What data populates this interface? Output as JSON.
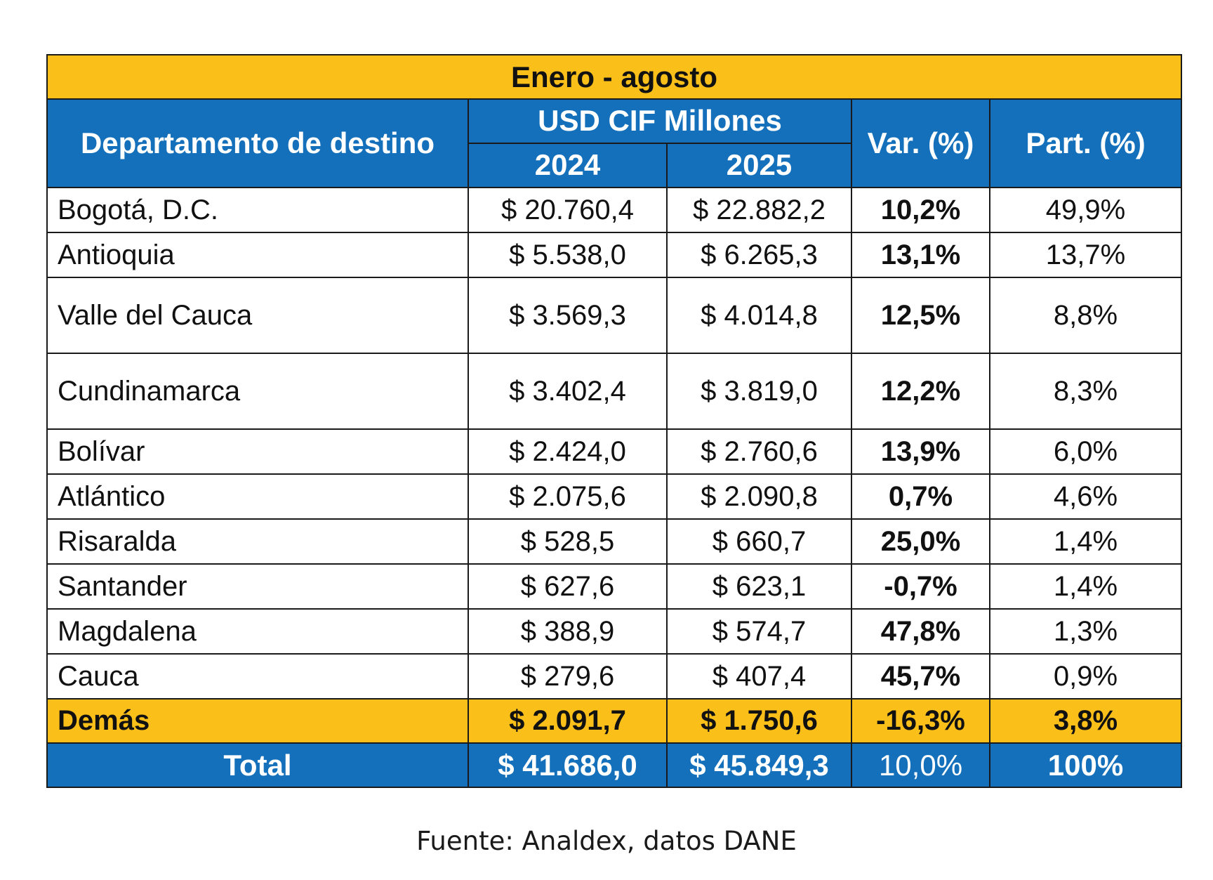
{
  "title": "Enero - agosto",
  "headers": {
    "department": "Departamento de destino",
    "usd_group": "USD CIF Millones",
    "year1": "2024",
    "year2": "2025",
    "var": "Var. (%)",
    "part": "Part. (%)"
  },
  "rows": [
    {
      "name": "Bogotá, D.C.",
      "v2024": "$ 20.760,4",
      "v2025": "$ 22.882,2",
      "var": "10,2%",
      "part": "49,9%"
    },
    {
      "name": "Antioquia",
      "v2024": "$ 5.538,0",
      "v2025": "$ 6.265,3",
      "var": "13,1%",
      "part": "13,7%"
    },
    {
      "name": "Valle del Cauca",
      "v2024": "$ 3.569,3",
      "v2025": "$ 4.014,8",
      "var": "12,5%",
      "part": "8,8%"
    },
    {
      "name": "Cundinamarca",
      "v2024": "$ 3.402,4",
      "v2025": "$ 3.819,0",
      "var": "12,2%",
      "part": "8,3%"
    },
    {
      "name": "Bolívar",
      "v2024": "$ 2.424,0",
      "v2025": "$ 2.760,6",
      "var": "13,9%",
      "part": "6,0%"
    },
    {
      "name": "Atlántico",
      "v2024": "$ 2.075,6",
      "v2025": "$ 2.090,8",
      "var": "0,7%",
      "part": "4,6%"
    },
    {
      "name": "Risaralda",
      "v2024": "$ 528,5",
      "v2025": "$ 660,7",
      "var": "25,0%",
      "part": "1,4%"
    },
    {
      "name": "Santander",
      "v2024": "$ 627,6",
      "v2025": "$ 623,1",
      "var": "-0,7%",
      "part": "1,4%"
    },
    {
      "name": "Magdalena",
      "v2024": "$ 388,9",
      "v2025": "$ 574,7",
      "var": "47,8%",
      "part": "1,3%"
    },
    {
      "name": "Cauca",
      "v2024": "$ 279,6",
      "v2025": "$ 407,4",
      "var": "45,7%",
      "part": "0,9%"
    }
  ],
  "demas": {
    "name": "Demás",
    "v2024": "$ 2.091,7",
    "v2025": "$ 1.750,6",
    "var": "-16,3%",
    "part": "3,8%"
  },
  "total": {
    "name": "Total",
    "v2024": "$ 41.686,0",
    "v2025": "$ 45.849,3",
    "var": "10,0%",
    "part": "100%"
  },
  "source": "Fuente: Analdex, datos DANE",
  "colors": {
    "yellow": "#fbbf1a",
    "blue": "#1470bb"
  }
}
